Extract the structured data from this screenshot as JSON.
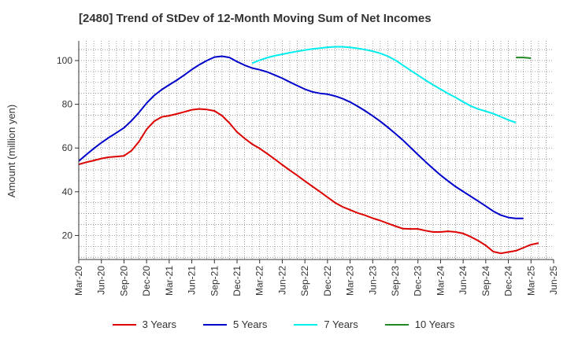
{
  "title": "[2480]  Trend of StDev of 12-Month Moving Sum of Net Incomes",
  "chart_data": {
    "type": "line",
    "ylabel": "Amount (million yen)",
    "xlabel": "",
    "ylim": [
      9,
      109
    ],
    "yticks": [
      20,
      40,
      60,
      80,
      100
    ],
    "x_start": "Mar-20",
    "x_labels": [
      "Mar-20",
      "Jun-20",
      "Sep-20",
      "Dec-20",
      "Mar-21",
      "Jun-21",
      "Sep-21",
      "Dec-21",
      "Mar-22",
      "Jun-22",
      "Sep-22",
      "Dec-22",
      "Mar-23",
      "Jun-23",
      "Sep-23",
      "Dec-23",
      "Mar-24",
      "Jun-24",
      "Sep-24",
      "Dec-24",
      "Mar-25",
      "Jun-25"
    ],
    "grid": true,
    "legend_position": "bottom",
    "series": [
      {
        "name": "3 Years",
        "color": "#dd0000",
        "start": "Mar-20",
        "values": [
          52.5,
          53.5,
          54.3,
          55.2,
          55.8,
          56.1,
          56.4,
          58.8,
          63.0,
          68.5,
          72.2,
          74.2,
          74.8,
          75.6,
          76.5,
          77.5,
          77.9,
          77.6,
          77.0,
          74.8,
          71.4,
          67.3,
          64.4,
          61.8,
          59.8,
          57.4,
          54.9,
          52.3,
          49.8,
          47.4,
          44.9,
          42.4,
          40.0,
          37.5,
          35.0,
          33.1,
          31.7,
          30.3,
          29.2,
          27.9,
          26.8,
          25.5,
          24.3,
          23.1,
          23.0,
          23.0,
          22.2,
          21.6,
          21.6,
          21.9,
          21.6,
          20.9,
          19.4,
          17.6,
          15.4,
          12.6,
          11.8,
          12.4,
          13.0,
          14.4,
          15.8,
          16.5
        ]
      },
      {
        "name": "5 Years",
        "color": "#0000cc",
        "start": "Mar-20",
        "values": [
          54.0,
          57.0,
          59.8,
          62.4,
          64.8,
          67.0,
          69.2,
          72.5,
          76.3,
          80.5,
          84.0,
          86.7,
          88.9,
          91.0,
          93.4,
          95.9,
          98.1,
          100.0,
          101.6,
          102.0,
          101.4,
          99.5,
          97.9,
          96.6,
          95.8,
          94.8,
          93.4,
          91.9,
          90.2,
          88.5,
          86.9,
          85.7,
          85.0,
          84.6,
          83.8,
          82.6,
          81.0,
          79.1,
          77.0,
          74.7,
          72.2,
          69.5,
          66.6,
          63.6,
          60.3,
          57.0,
          53.7,
          50.6,
          47.6,
          44.9,
          42.3,
          40.1,
          37.9,
          35.7,
          33.4,
          31.1,
          29.3,
          28.2,
          27.8,
          27.8
        ]
      },
      {
        "name": "7 Years",
        "color": "#00eeee",
        "start": "Feb-22",
        "values": [
          98.8,
          100.2,
          101.3,
          102.2,
          102.9,
          103.6,
          104.2,
          104.8,
          105.3,
          105.7,
          106.1,
          106.3,
          106.3,
          106.0,
          105.6,
          105.0,
          104.3,
          103.3,
          102.0,
          100.2,
          97.9,
          95.6,
          93.3,
          91.0,
          88.9,
          86.9,
          84.9,
          83.1,
          81.1,
          79.2,
          77.8,
          76.8,
          75.7,
          74.3,
          72.8,
          71.6
        ]
      },
      {
        "name": "10 Years",
        "color": "#228822",
        "start": "Jan-25",
        "values": [
          101.4,
          101.4,
          101.1
        ]
      }
    ]
  }
}
